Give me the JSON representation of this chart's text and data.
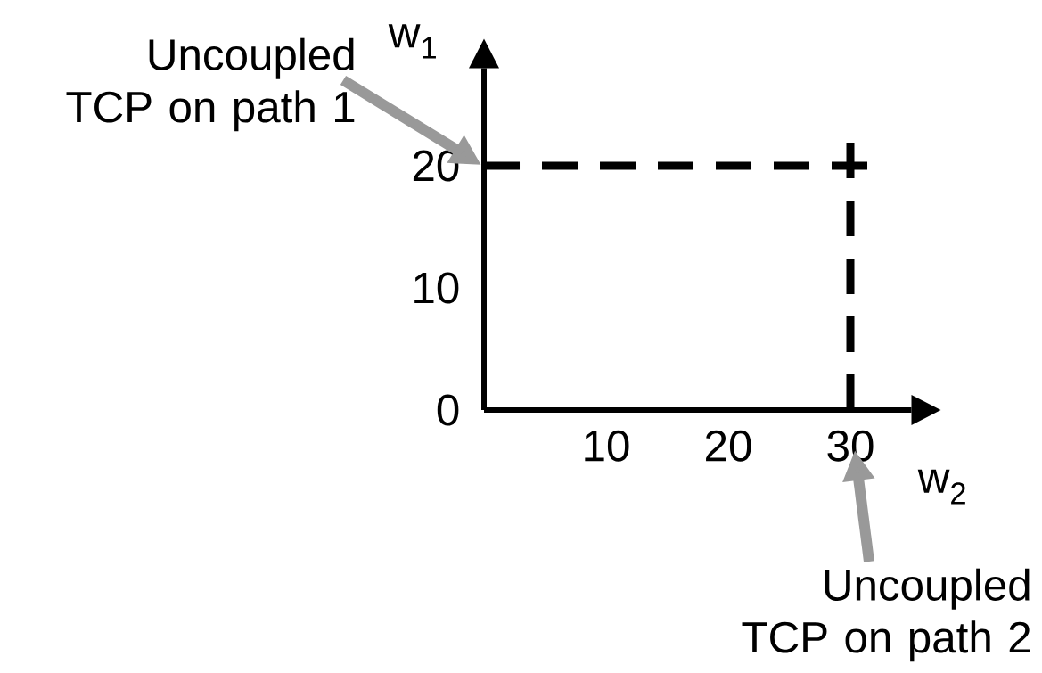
{
  "chart_data": {
    "type": "line",
    "xlabel": "w$_{2}$",
    "ylabel": "w$_{1}$",
    "xlim": [
      0,
      35
    ],
    "ylim": [
      0,
      28
    ],
    "xticks": [
      10,
      20,
      30
    ],
    "yticks": [
      0,
      10,
      20
    ],
    "grid": false,
    "ref_lines": [
      {
        "axis": "y",
        "value": 20,
        "color": "#000000",
        "line_style": "dashed"
      },
      {
        "axis": "x",
        "value": 30,
        "color": "#000000",
        "line_style": "dashed"
      }
    ],
    "annotations": [
      "Uncoupled TCP on path 1",
      "Uncoupled TCP on path 2"
    ]
  }
}
